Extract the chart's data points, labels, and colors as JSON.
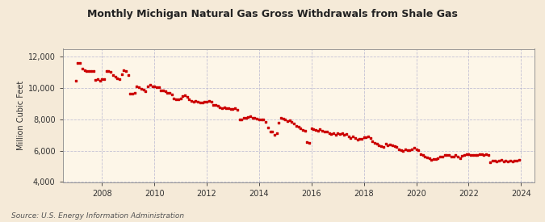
{
  "title": "Monthly Michigan Natural Gas Gross Withdrawals from Shale Gas",
  "ylabel": "Million Cubic Feet",
  "source": "Source: U.S. Energy Information Administration",
  "bg_color": "#f5ead8",
  "plot_bg_color": "#fdf6e8",
  "marker_color": "#cc0000",
  "marker_size": 3.5,
  "ylim": [
    4000,
    12500
  ],
  "yticks": [
    4000,
    6000,
    8000,
    10000,
    12000
  ],
  "xlim_start": 2006.5,
  "xlim_end": 2024.5,
  "xticks": [
    2008,
    2010,
    2012,
    2014,
    2016,
    2018,
    2020,
    2022,
    2024
  ],
  "data": {
    "dates_decimal": [
      2007.0,
      2007.08,
      2007.17,
      2007.25,
      2007.33,
      2007.42,
      2007.5,
      2007.58,
      2007.67,
      2007.75,
      2007.83,
      2007.92,
      2008.0,
      2008.08,
      2008.17,
      2008.25,
      2008.33,
      2008.42,
      2008.5,
      2008.58,
      2008.67,
      2008.75,
      2008.83,
      2008.92,
      2009.0,
      2009.08,
      2009.17,
      2009.25,
      2009.33,
      2009.42,
      2009.5,
      2009.58,
      2009.67,
      2009.75,
      2009.83,
      2009.92,
      2010.0,
      2010.08,
      2010.17,
      2010.25,
      2010.33,
      2010.42,
      2010.5,
      2010.58,
      2010.67,
      2010.75,
      2010.83,
      2010.92,
      2011.0,
      2011.08,
      2011.17,
      2011.25,
      2011.33,
      2011.42,
      2011.5,
      2011.58,
      2011.67,
      2011.75,
      2011.83,
      2011.92,
      2012.0,
      2012.08,
      2012.17,
      2012.25,
      2012.33,
      2012.42,
      2012.5,
      2012.58,
      2012.67,
      2012.75,
      2012.83,
      2012.92,
      2013.0,
      2013.08,
      2013.17,
      2013.25,
      2013.33,
      2013.42,
      2013.5,
      2013.58,
      2013.67,
      2013.75,
      2013.83,
      2013.92,
      2014.0,
      2014.08,
      2014.17,
      2014.25,
      2014.33,
      2014.42,
      2014.5,
      2014.58,
      2014.67,
      2014.75,
      2014.83,
      2014.92,
      2015.0,
      2015.08,
      2015.17,
      2015.25,
      2015.33,
      2015.42,
      2015.5,
      2015.58,
      2015.67,
      2015.75,
      2015.83,
      2015.92,
      2016.0,
      2016.08,
      2016.17,
      2016.25,
      2016.33,
      2016.42,
      2016.5,
      2016.58,
      2016.67,
      2016.75,
      2016.83,
      2016.92,
      2017.0,
      2017.08,
      2017.17,
      2017.25,
      2017.33,
      2017.42,
      2017.5,
      2017.58,
      2017.67,
      2017.75,
      2017.83,
      2017.92,
      2018.0,
      2018.08,
      2018.17,
      2018.25,
      2018.33,
      2018.42,
      2018.5,
      2018.58,
      2018.67,
      2018.75,
      2018.83,
      2018.92,
      2019.0,
      2019.08,
      2019.17,
      2019.25,
      2019.33,
      2019.42,
      2019.5,
      2019.58,
      2019.67,
      2019.75,
      2019.83,
      2019.92,
      2020.0,
      2020.08,
      2020.17,
      2020.25,
      2020.33,
      2020.42,
      2020.5,
      2020.58,
      2020.67,
      2020.75,
      2020.83,
      2020.92,
      2021.0,
      2021.08,
      2021.17,
      2021.25,
      2021.33,
      2021.42,
      2021.5,
      2021.58,
      2021.67,
      2021.75,
      2021.83,
      2021.92,
      2022.0,
      2022.08,
      2022.17,
      2022.25,
      2022.33,
      2022.42,
      2022.5,
      2022.58,
      2022.67,
      2022.75,
      2022.83,
      2022.92,
      2023.0,
      2023.08,
      2023.17,
      2023.25,
      2023.33,
      2023.42,
      2023.5,
      2023.58,
      2023.67,
      2023.75,
      2023.83,
      2023.92
    ],
    "values": [
      10480,
      11620,
      11580,
      11250,
      11150,
      11100,
      11100,
      11080,
      11060,
      10520,
      10560,
      10460,
      10550,
      10560,
      11100,
      11100,
      11050,
      10850,
      10700,
      10600,
      10580,
      10900,
      11150,
      11100,
      10820,
      9650,
      9650,
      9700,
      10100,
      10050,
      9950,
      9900,
      9820,
      10100,
      10200,
      10120,
      10100,
      10050,
      10050,
      9850,
      9850,
      9800,
      9700,
      9680,
      9600,
      9350,
      9300,
      9280,
      9350,
      9500,
      9550,
      9450,
      9300,
      9200,
      9100,
      9200,
      9100,
      9050,
      9050,
      9100,
      9100,
      9200,
      9150,
      8900,
      8900,
      8850,
      8750,
      8700,
      8750,
      8700,
      8700,
      8650,
      8650,
      8700,
      8600,
      7980,
      8000,
      8100,
      8100,
      8150,
      8200,
      8100,
      8100,
      8050,
      7980,
      8000,
      7980,
      7850,
      7500,
      7200,
      7200,
      7000,
      7100,
      7800,
      8100,
      8050,
      8000,
      7900,
      7950,
      7850,
      7750,
      7600,
      7550,
      7400,
      7300,
      7250,
      6550,
      6500,
      7450,
      7350,
      7300,
      7250,
      7350,
      7250,
      7200,
      7200,
      7100,
      7050,
      7100,
      7000,
      7100,
      7050,
      7100,
      7000,
      7050,
      6900,
      6800,
      6900,
      6800,
      6700,
      6750,
      6750,
      6850,
      6850,
      6900,
      6800,
      6600,
      6500,
      6450,
      6350,
      6300,
      6250,
      6450,
      6350,
      6400,
      6350,
      6300,
      6250,
      6100,
      6050,
      6000,
      6100,
      6050,
      6050,
      6100,
      6200,
      6100,
      6050,
      5800,
      5700,
      5600,
      5550,
      5500,
      5400,
      5450,
      5450,
      5500,
      5600,
      5600,
      5700,
      5750,
      5700,
      5600,
      5600,
      5700,
      5600,
      5500,
      5650,
      5700,
      5800,
      5800,
      5700,
      5750,
      5750,
      5700,
      5800,
      5800,
      5750,
      5800,
      5700,
      5250,
      5350,
      5350,
      5300,
      5350,
      5400,
      5300,
      5350,
      5300,
      5350,
      5300,
      5350,
      5350,
      5400
    ]
  }
}
